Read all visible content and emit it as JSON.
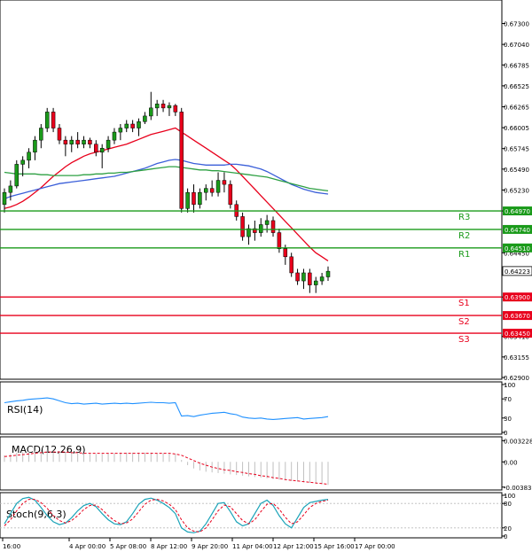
{
  "chart_data": [
    {
      "type": "candlestick",
      "panel": "price",
      "ylim": [
        0.629,
        0.6757
      ],
      "y_ticks": [
        "0.67300",
        "0.67040",
        "0.66785",
        "0.66525",
        "0.66265",
        "0.66005",
        "0.65745",
        "0.65490",
        "0.65230",
        "0.64970",
        "0.64450",
        "0.63900",
        "0.63410",
        "0.63155",
        "0.62900"
      ],
      "x_tick_labels": [
        "16:00",
        "4 Apr 00:00",
        "5 Apr 08:00",
        "8 Apr 12:00",
        "9 Apr 20:00",
        "11 Apr 04:00",
        "12 Apr 12:00",
        "15 Apr 16:00",
        "17 Apr 00:00"
      ],
      "candles": [
        [
          0.6505,
          0.6525,
          0.6495,
          0.652
        ],
        [
          0.652,
          0.6535,
          0.651,
          0.6528
        ],
        [
          0.6528,
          0.656,
          0.6525,
          0.6555
        ],
        [
          0.6555,
          0.6565,
          0.654,
          0.656
        ],
        [
          0.656,
          0.6575,
          0.655,
          0.657
        ],
        [
          0.657,
          0.659,
          0.656,
          0.6585
        ],
        [
          0.6585,
          0.6605,
          0.6575,
          0.66
        ],
        [
          0.66,
          0.6625,
          0.6595,
          0.662
        ],
        [
          0.662,
          0.6625,
          0.6595,
          0.66
        ],
        [
          0.66,
          0.6605,
          0.658,
          0.6585
        ],
        [
          0.6585,
          0.659,
          0.6565,
          0.658
        ],
        [
          0.658,
          0.659,
          0.657,
          0.6585
        ],
        [
          0.6585,
          0.6595,
          0.6575,
          0.658
        ],
        [
          0.658,
          0.659,
          0.6575,
          0.6585
        ],
        [
          0.6585,
          0.6588,
          0.6575,
          0.658
        ],
        [
          0.658,
          0.6585,
          0.6565,
          0.657
        ],
        [
          0.657,
          0.658,
          0.655,
          0.6575
        ],
        [
          0.6575,
          0.659,
          0.657,
          0.6585
        ],
        [
          0.6585,
          0.66,
          0.658,
          0.6595
        ],
        [
          0.6595,
          0.6605,
          0.6585,
          0.66
        ],
        [
          0.66,
          0.661,
          0.6595,
          0.6605
        ],
        [
          0.6605,
          0.661,
          0.6595,
          0.66
        ],
        [
          0.66,
          0.6612,
          0.659,
          0.6608
        ],
        [
          0.6608,
          0.662,
          0.6605,
          0.6615
        ],
        [
          0.6615,
          0.6645,
          0.661,
          0.6625
        ],
        [
          0.6625,
          0.6635,
          0.6615,
          0.663
        ],
        [
          0.663,
          0.6635,
          0.662,
          0.6625
        ],
        [
          0.6625,
          0.6632,
          0.6615,
          0.6628
        ],
        [
          0.6628,
          0.663,
          0.6615,
          0.662
        ],
        [
          0.662,
          0.6625,
          0.6495,
          0.65
        ],
        [
          0.65,
          0.6525,
          0.6495,
          0.652
        ],
        [
          0.652,
          0.653,
          0.6495,
          0.6505
        ],
        [
          0.6505,
          0.6525,
          0.65,
          0.652
        ],
        [
          0.652,
          0.653,
          0.651,
          0.6525
        ],
        [
          0.6525,
          0.6535,
          0.6515,
          0.652
        ],
        [
          0.652,
          0.6545,
          0.6515,
          0.6535
        ],
        [
          0.6535,
          0.6545,
          0.652,
          0.653
        ],
        [
          0.653,
          0.6535,
          0.65,
          0.6505
        ],
        [
          0.6505,
          0.651,
          0.6485,
          0.649
        ],
        [
          0.649,
          0.6495,
          0.646,
          0.6465
        ],
        [
          0.6465,
          0.648,
          0.6455,
          0.6475
        ],
        [
          0.6475,
          0.6485,
          0.646,
          0.647
        ],
        [
          0.647,
          0.6488,
          0.6465,
          0.648
        ],
        [
          0.648,
          0.6492,
          0.647,
          0.6485
        ],
        [
          0.6485,
          0.649,
          0.6465,
          0.647
        ],
        [
          0.647,
          0.6475,
          0.6445,
          0.645
        ],
        [
          0.645,
          0.6455,
          0.643,
          0.644
        ],
        [
          0.644,
          0.6445,
          0.6415,
          0.642
        ],
        [
          0.642,
          0.6425,
          0.6405,
          0.641
        ],
        [
          0.641,
          0.6425,
          0.64,
          0.642
        ],
        [
          0.642,
          0.6425,
          0.6395,
          0.6405
        ],
        [
          0.6405,
          0.6415,
          0.6395,
          0.641
        ],
        [
          0.641,
          0.642,
          0.6405,
          0.6415
        ],
        [
          0.6415,
          0.6428,
          0.641,
          0.6422
        ]
      ],
      "moving_averages": [
        {
          "color": "#e8001c",
          "values": [
            0.65,
            0.6502,
            0.6505,
            0.6509,
            0.6514,
            0.652,
            0.6526,
            0.6533,
            0.654,
            0.6546,
            0.6552,
            0.6557,
            0.6561,
            0.6565,
            0.6568,
            0.657,
            0.6572,
            0.6574,
            0.6576,
            0.6578,
            0.658,
            0.6583,
            0.6586,
            0.6589,
            0.6592,
            0.6594,
            0.6596,
            0.6598,
            0.66,
            0.6595,
            0.659,
            0.6585,
            0.658,
            0.6575,
            0.657,
            0.6565,
            0.656,
            0.6555,
            0.6548,
            0.654,
            0.6532,
            0.6524,
            0.6516,
            0.6508,
            0.65,
            0.6492,
            0.6484,
            0.6476,
            0.6468,
            0.646,
            0.6452,
            0.6445,
            0.644,
            0.6435
          ]
        },
        {
          "color": "#3b5fd9",
          "values": [
            0.6512,
            0.6515,
            0.6517,
            0.6519,
            0.6521,
            0.6523,
            0.6525,
            0.6527,
            0.6529,
            0.6531,
            0.6532,
            0.6533,
            0.6534,
            0.6535,
            0.6536,
            0.6537,
            0.6538,
            0.6539,
            0.654,
            0.6542,
            0.6544,
            0.6546,
            0.6548,
            0.655,
            0.6553,
            0.6556,
            0.6558,
            0.656,
            0.6561,
            0.656,
            0.6558,
            0.6556,
            0.6555,
            0.6554,
            0.6554,
            0.6554,
            0.6554,
            0.6555,
            0.6555,
            0.6554,
            0.6553,
            0.6551,
            0.6549,
            0.6546,
            0.6542,
            0.6538,
            0.6534,
            0.653,
            0.6527,
            0.6524,
            0.6522,
            0.652,
            0.6519,
            0.6518
          ]
        },
        {
          "color": "#2ea043",
          "values": [
            0.6545,
            0.6544,
            0.6543,
            0.6543,
            0.6543,
            0.6543,
            0.6542,
            0.6542,
            0.6541,
            0.6541,
            0.6541,
            0.6541,
            0.6541,
            0.6542,
            0.6542,
            0.6543,
            0.6543,
            0.6544,
            0.6544,
            0.6545,
            0.6545,
            0.6546,
            0.6547,
            0.6548,
            0.6549,
            0.655,
            0.6551,
            0.6552,
            0.6552,
            0.6551,
            0.655,
            0.6549,
            0.6548,
            0.6548,
            0.6547,
            0.6547,
            0.6546,
            0.6545,
            0.6544,
            0.6543,
            0.6542,
            0.6541,
            0.654,
            0.6539,
            0.6537,
            0.6535,
            0.6533,
            0.6531,
            0.6529,
            0.6527,
            0.6525,
            0.6524,
            0.6523,
            0.6522
          ]
        }
      ],
      "current_price": "0.64223",
      "levels": [
        {
          "name": "R3",
          "value": 0.6497,
          "label": "0.64970",
          "color": "#1a9a1a"
        },
        {
          "name": "R2",
          "value": 0.6474,
          "label": "0.64740",
          "color": "#1a9a1a"
        },
        {
          "name": "R1",
          "value": 0.6451,
          "label": "0.64510",
          "color": "#1a9a1a"
        },
        {
          "name": "S1",
          "value": 0.639,
          "label": "0.63900",
          "color": "#e8001c"
        },
        {
          "name": "S2",
          "value": 0.6367,
          "label": "0.63670",
          "color": "#e8001c"
        },
        {
          "name": "S3",
          "value": 0.6345,
          "label": "0.63450",
          "color": "#e8001c"
        }
      ]
    },
    {
      "type": "line",
      "panel": "rsi",
      "title": "RSI(14)",
      "ylim": [
        0,
        100
      ],
      "y_ticks": [
        "100",
        "70",
        "30",
        "0"
      ],
      "values": [
        62,
        64,
        66,
        67,
        69,
        70,
        71,
        72,
        70,
        66,
        62,
        60,
        61,
        59,
        60,
        61,
        59,
        60,
        61,
        60,
        61,
        60,
        61,
        62,
        63,
        62,
        62,
        61,
        62,
        34,
        35,
        33,
        36,
        38,
        40,
        41,
        42,
        39,
        37,
        32,
        30,
        29,
        30,
        28,
        27,
        28,
        29,
        30,
        31,
        28,
        29,
        30,
        31,
        33
      ],
      "color": "#1e90ff"
    },
    {
      "type": "bar",
      "panel": "macd",
      "title": "MACD(12,26,9)",
      "ylim": [
        -0.004,
        0.0034
      ],
      "y_ticks": [
        "0.003228",
        "0.00",
        "-0.003832"
      ],
      "histogram": [
        0.001,
        0.0012,
        0.0014,
        0.0015,
        0.0016,
        0.0017,
        0.0018,
        0.0018,
        0.0017,
        0.0016,
        0.0015,
        0.0014,
        0.0013,
        0.0013,
        0.0012,
        0.0012,
        0.0012,
        0.0013,
        0.0013,
        0.0014,
        0.0014,
        0.0014,
        0.0014,
        0.0014,
        0.0014,
        0.0013,
        0.0013,
        0.0012,
        0.0012,
        0.0003,
        -0.0005,
        -0.001,
        -0.0013,
        -0.0015,
        -0.0016,
        -0.0017,
        -0.0018,
        -0.0019,
        -0.002,
        -0.0021,
        -0.0022,
        -0.0023,
        -0.0024,
        -0.0025,
        -0.0026,
        -0.0027,
        -0.0028,
        -0.0029,
        -0.003,
        -0.0031,
        -0.0032,
        -0.0033,
        -0.0034,
        -0.0035
      ],
      "signal": [
        0.0008,
        0.0009,
        0.001,
        0.0011,
        0.0012,
        0.0013,
        0.0014,
        0.0015,
        0.0015,
        0.0015,
        0.0015,
        0.0014,
        0.0014,
        0.0013,
        0.0013,
        0.0013,
        0.0013,
        0.0013,
        0.0013,
        0.0013,
        0.0013,
        0.0013,
        0.0013,
        0.0013,
        0.0013,
        0.0013,
        0.0013,
        0.0013,
        0.0012,
        0.001,
        0.0006,
        0.0002,
        -0.0002,
        -0.0005,
        -0.0008,
        -0.001,
        -0.0012,
        -0.0013,
        -0.0015,
        -0.0016,
        -0.0018,
        -0.0019,
        -0.0021,
        -0.0022,
        -0.0024,
        -0.0025,
        -0.0027,
        -0.0028,
        -0.0029,
        -0.003,
        -0.0031,
        -0.0032,
        -0.0033,
        -0.0034
      ],
      "histogram_color": "#c0c0c0",
      "signal_color": "#e8001c"
    },
    {
      "type": "line",
      "panel": "stochastic",
      "title": "Stoch(9,6,3)",
      "ylim": [
        0,
        100
      ],
      "y_ticks": [
        "100",
        "80",
        "20",
        "0"
      ],
      "main": [
        30,
        55,
        80,
        92,
        95,
        88,
        70,
        50,
        35,
        28,
        32,
        45,
        62,
        75,
        80,
        72,
        55,
        40,
        30,
        28,
        35,
        55,
        78,
        90,
        93,
        88,
        80,
        70,
        55,
        20,
        10,
        8,
        12,
        30,
        55,
        80,
        82,
        60,
        35,
        25,
        30,
        55,
        80,
        88,
        75,
        50,
        30,
        20,
        45,
        70,
        82,
        85,
        88,
        90
      ],
      "signal_line": [
        25,
        40,
        62,
        80,
        90,
        90,
        82,
        68,
        50,
        38,
        32,
        38,
        50,
        65,
        75,
        76,
        65,
        50,
        38,
        30,
        32,
        42,
        60,
        78,
        88,
        90,
        86,
        78,
        65,
        40,
        20,
        12,
        10,
        20,
        40,
        62,
        76,
        72,
        55,
        38,
        30,
        40,
        60,
        78,
        80,
        66,
        46,
        30,
        35,
        52,
        70,
        80,
        85,
        88
      ],
      "main_color": "#1aa3b8",
      "signal_color": "#e8001c"
    }
  ]
}
